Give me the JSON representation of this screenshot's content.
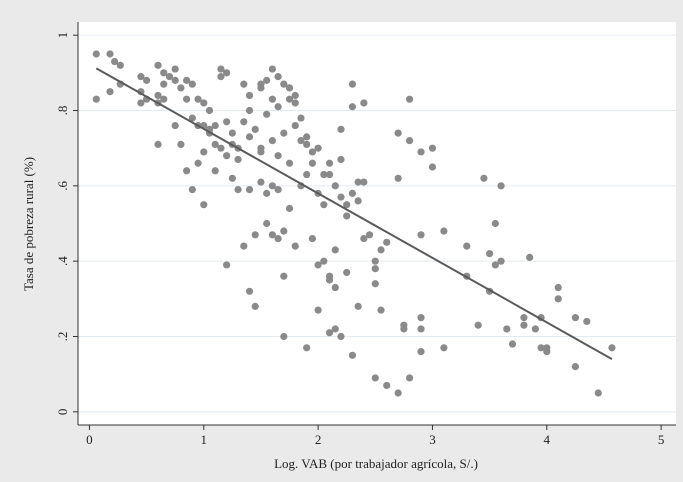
{
  "chart_data": {
    "type": "scatter",
    "xlabel": "Log. VAB (por trabajador agrícola, S/.)",
    "ylabel": "Tasa de pobreza rural (%)",
    "xlim": [
      -0.1,
      5.13
    ],
    "ylim": [
      -0.035,
      1.035
    ],
    "xticks": [
      0,
      1,
      2,
      3,
      4,
      5
    ],
    "yticks": [
      0,
      {
        "value": 0.2,
        "label": ".2"
      },
      {
        "value": 0.4,
        "label": ".4"
      },
      {
        "value": 0.6,
        "label": ".6"
      },
      {
        "value": 0.8,
        "label": ".8"
      },
      1
    ],
    "grid": true,
    "series": [
      {
        "color": "#8a8a8a",
        "x": [
          0.06,
          0.06,
          0.18,
          0.18,
          0.22,
          0.27,
          0.27,
          0.45,
          0.45,
          0.45,
          0.5,
          0.5,
          0.6,
          0.6,
          0.6,
          0.6,
          0.65,
          0.65,
          0.65,
          0.7,
          0.75,
          0.75,
          0.75,
          0.8,
          0.8,
          0.85,
          0.85,
          0.85,
          0.9,
          0.9,
          0.9,
          0.95,
          0.95,
          0.95,
          1.0,
          1.0,
          1.0,
          1.0,
          1.05,
          1.05,
          1.05,
          1.1,
          1.1,
          1.1,
          1.15,
          1.15,
          1.15,
          1.2,
          1.2,
          1.2,
          1.2,
          1.25,
          1.25,
          1.25,
          1.3,
          1.3,
          1.3,
          1.35,
          1.35,
          1.35,
          1.4,
          1.4,
          1.4,
          1.4,
          1.4,
          1.45,
          1.45,
          1.45,
          1.5,
          1.5,
          1.5,
          1.5,
          1.5,
          1.55,
          1.55,
          1.55,
          1.55,
          1.6,
          1.6,
          1.6,
          1.6,
          1.6,
          1.65,
          1.65,
          1.65,
          1.65,
          1.65,
          1.7,
          1.7,
          1.7,
          1.7,
          1.7,
          1.75,
          1.75,
          1.75,
          1.75,
          1.8,
          1.8,
          1.8,
          1.8,
          1.85,
          1.85,
          1.85,
          1.9,
          1.9,
          1.9,
          1.9,
          1.95,
          1.95,
          1.95,
          2.0,
          2.0,
          2.0,
          2.0,
          2.05,
          2.05,
          2.05,
          2.1,
          2.1,
          2.1,
          2.1,
          2.1,
          2.15,
          2.15,
          2.15,
          2.15,
          2.2,
          2.2,
          2.2,
          2.2,
          2.25,
          2.25,
          2.25,
          2.3,
          2.3,
          2.3,
          2.3,
          2.35,
          2.35,
          2.35,
          2.4,
          2.4,
          2.4,
          2.45,
          2.5,
          2.5,
          2.5,
          2.5,
          2.55,
          2.55,
          2.6,
          2.6,
          2.7,
          2.7,
          2.7,
          2.75,
          2.75,
          2.8,
          2.8,
          2.8,
          2.9,
          2.9,
          2.9,
          2.9,
          2.9,
          3.0,
          3.0,
          3.1,
          3.1,
          3.3,
          3.3,
          3.4,
          3.45,
          3.5,
          3.5,
          3.55,
          3.55,
          3.6,
          3.6,
          3.65,
          3.7,
          3.8,
          3.8,
          3.85,
          3.9,
          3.95,
          3.95,
          4.0,
          4.0,
          4.1,
          4.1,
          4.25,
          4.25,
          4.35,
          4.45,
          4.57
        ],
        "values": [
          0.95,
          0.83,
          0.95,
          0.85,
          0.93,
          0.92,
          0.87,
          0.89,
          0.82,
          0.85,
          0.88,
          0.83,
          0.92,
          0.84,
          0.71,
          0.82,
          0.9,
          0.87,
          0.83,
          0.89,
          0.91,
          0.88,
          0.76,
          0.86,
          0.71,
          0.88,
          0.83,
          0.64,
          0.87,
          0.78,
          0.59,
          0.83,
          0.76,
          0.66,
          0.82,
          0.76,
          0.69,
          0.55,
          0.8,
          0.74,
          0.75,
          0.76,
          0.71,
          0.64,
          0.91,
          0.89,
          0.7,
          0.9,
          0.77,
          0.68,
          0.39,
          0.74,
          0.71,
          0.62,
          0.7,
          0.67,
          0.59,
          0.87,
          0.77,
          0.44,
          0.84,
          0.8,
          0.73,
          0.32,
          0.59,
          0.75,
          0.47,
          0.28,
          0.87,
          0.86,
          0.7,
          0.61,
          0.69,
          0.88,
          0.79,
          0.58,
          0.5,
          0.91,
          0.83,
          0.72,
          0.6,
          0.47,
          0.89,
          0.81,
          0.68,
          0.46,
          0.59,
          0.87,
          0.74,
          0.48,
          0.36,
          0.2,
          0.86,
          0.83,
          0.66,
          0.54,
          0.84,
          0.82,
          0.76,
          0.44,
          0.78,
          0.72,
          0.6,
          0.73,
          0.71,
          0.63,
          0.17,
          0.69,
          0.66,
          0.46,
          0.7,
          0.58,
          0.39,
          0.27,
          0.55,
          0.63,
          0.4,
          0.66,
          0.63,
          0.36,
          0.21,
          0.35,
          0.6,
          0.43,
          0.33,
          0.22,
          0.75,
          0.67,
          0.57,
          0.2,
          0.55,
          0.52,
          0.37,
          0.81,
          0.87,
          0.58,
          0.15,
          0.61,
          0.56,
          0.28,
          0.82,
          0.61,
          0.46,
          0.47,
          0.4,
          0.38,
          0.34,
          0.09,
          0.43,
          0.27,
          0.07,
          0.45,
          0.74,
          0.62,
          0.05,
          0.23,
          0.22,
          0.83,
          0.72,
          0.09,
          0.69,
          0.47,
          0.25,
          0.22,
          0.16,
          0.7,
          0.65,
          0.48,
          0.17,
          0.44,
          0.36,
          0.23,
          0.62,
          0.42,
          0.32,
          0.5,
          0.39,
          0.6,
          0.4,
          0.22,
          0.18,
          0.23,
          0.25,
          0.41,
          0.22,
          0.17,
          0.25,
          0.17,
          0.16,
          0.33,
          0.3,
          0.12,
          0.25,
          0.24,
          0.05,
          0.17
        ]
      },
      {
        "type": "line",
        "color": "#5a5a5a",
        "x": [
          0.06,
          4.57
        ],
        "values": [
          0.912,
          0.14
        ]
      }
    ]
  }
}
